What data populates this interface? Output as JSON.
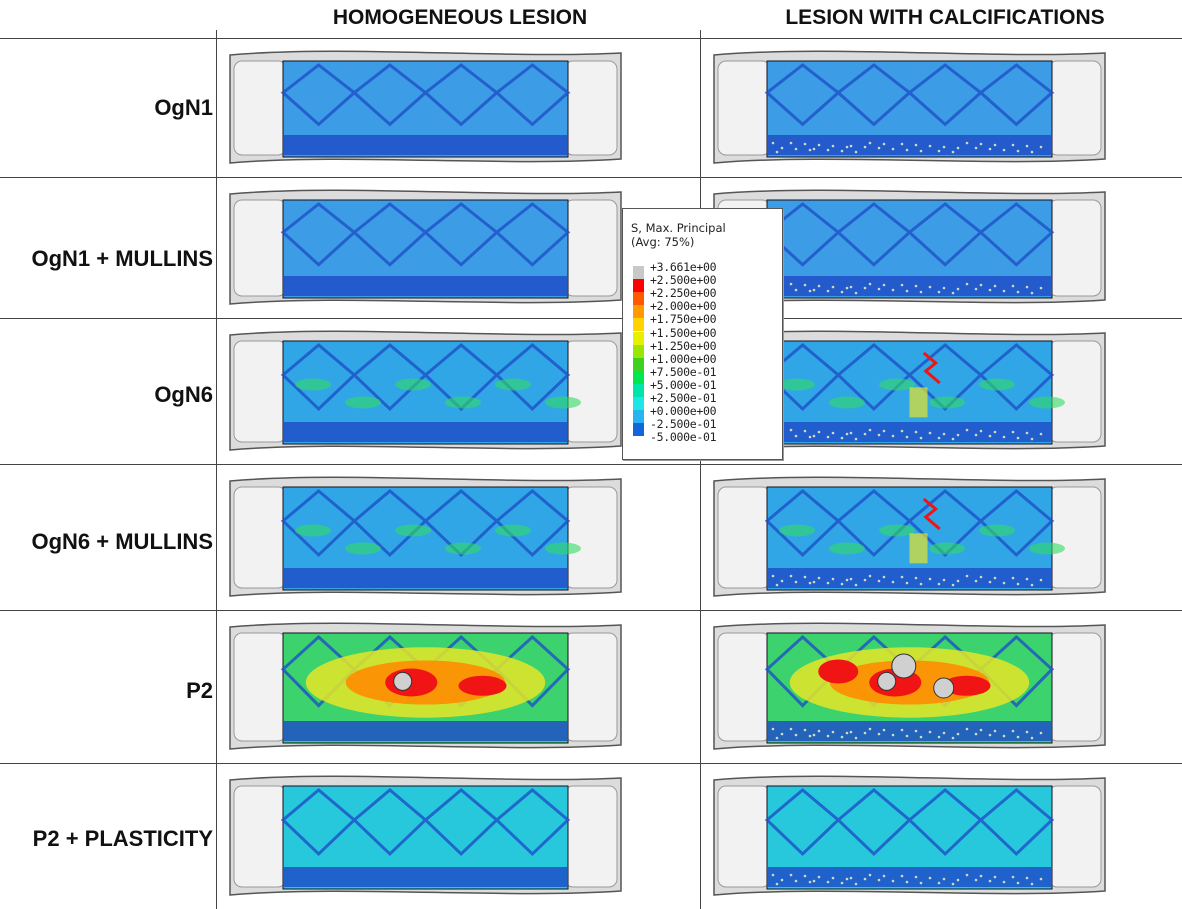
{
  "columns": [
    "HOMOGENEOUS LESION",
    "LESION WITH CALCIFICATIONS"
  ],
  "rows": [
    "OgN1",
    "OgN1 + MULLINS",
    "OgN6",
    "OgN6 + MULLINS",
    "P2",
    "P2 + PLASTICITY"
  ],
  "legend": {
    "title_line1": "S, Max. Principal",
    "title_line2": "(Avg: 75%)",
    "entries": [
      {
        "value": "+3.661e+00",
        "color": "#c8c8c8"
      },
      {
        "value": "+2.500e+00",
        "color": "#ff0000"
      },
      {
        "value": "+2.250e+00",
        "color": "#ff5a00"
      },
      {
        "value": "+2.000e+00",
        "color": "#ff9a00"
      },
      {
        "value": "+1.750e+00",
        "color": "#ffd200"
      },
      {
        "value": "+1.500e+00",
        "color": "#e6f000"
      },
      {
        "value": "+1.250e+00",
        "color": "#9ae600"
      },
      {
        "value": "+1.000e+00",
        "color": "#3cd21e"
      },
      {
        "value": "+7.500e-01",
        "color": "#00e650"
      },
      {
        "value": "+5.000e-01",
        "color": "#00e6aa"
      },
      {
        "value": "+2.500e-01",
        "color": "#1ee6e6"
      },
      {
        "value": "+0.000e+00",
        "color": "#28b4f0"
      },
      {
        "value": "-2.500e-01",
        "color": "#1464dc"
      },
      {
        "value": "-5.000e-01",
        "color": "#0014c8"
      }
    ],
    "last_value": "-5.000e-01"
  },
  "colors": {
    "vessel": "#dcdcdc",
    "vessel_edge": "#555555",
    "stent_light": "#3c9ce6",
    "stent_dark": "#1e50c8",
    "cyan": "#28c8dc",
    "green": "#32dc64",
    "yellow": "#e6e628",
    "red": "#f01414"
  },
  "cells": [
    {
      "row": 0,
      "col": 0,
      "style": "blue"
    },
    {
      "row": 0,
      "col": 1,
      "style": "blue"
    },
    {
      "row": 1,
      "col": 0,
      "style": "blue"
    },
    {
      "row": 1,
      "col": 1,
      "style": "blue"
    },
    {
      "row": 2,
      "col": 0,
      "style": "blue-cyan"
    },
    {
      "row": 2,
      "col": 1,
      "style": "blue-cyan-hot"
    },
    {
      "row": 3,
      "col": 0,
      "style": "blue-cyan"
    },
    {
      "row": 3,
      "col": 1,
      "style": "blue-cyan-hot"
    },
    {
      "row": 4,
      "col": 0,
      "style": "hot"
    },
    {
      "row": 4,
      "col": 1,
      "style": "very-hot"
    },
    {
      "row": 5,
      "col": 0,
      "style": "cyan"
    },
    {
      "row": 5,
      "col": 1,
      "style": "cyan"
    }
  ]
}
